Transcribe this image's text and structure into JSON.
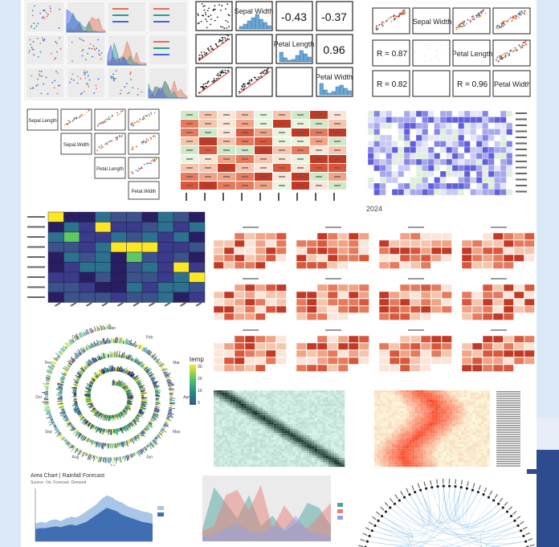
{
  "collage": {
    "colors": {
      "background": "#dbe9f7",
      "accent": "#2d4b8e",
      "red": "#d9583b",
      "blue": "#5a66d6",
      "green": "#3a8a5c"
    }
  },
  "corr_matrix_text": {
    "diag": [
      "Sepal Width",
      "Petal Length",
      "Petal Width"
    ],
    "values": [
      "-0.43",
      "-0.37",
      "0.96"
    ]
  },
  "corr_r_matrix": {
    "diag": [
      "Sepal Width",
      "Petal Length",
      "Petal Width"
    ],
    "r_values": [
      "R = 0.87",
      "R = 0.82",
      "R = 0.96"
    ]
  },
  "scatter_matrix_labels": {
    "diag": [
      "Sepal.Length",
      "Sepal.Width",
      "Petal.Length",
      "Petal.Width"
    ]
  },
  "calendar_year": {
    "label": "2024"
  },
  "polar": {
    "months": [
      "Jan",
      "Feb",
      "Mar",
      "Apr",
      "May",
      "Jun",
      "Jul",
      "Aug",
      "Sep",
      "Oct",
      "Nov",
      "Dec"
    ],
    "legend_title": "temp",
    "legend_ticks": [
      "30",
      "20",
      "10",
      "0"
    ]
  },
  "area_chart": {
    "title": "Area Chart | Rainfall Forecast",
    "subtitle": "Source: Vis. Forecast. Demand"
  },
  "chart_data": [
    {
      "type": "table",
      "title": "",
      "rows": [
        "Sepal Width",
        "Petal Length",
        "Petal Width"
      ],
      "values": [
        [
          "",
          "-0.43",
          "-0.37"
        ],
        [
          "",
          "",
          "0.96"
        ],
        [
          "",
          "",
          ""
        ]
      ]
    },
    {
      "type": "table",
      "title": "",
      "values": [
        "R = 0.87",
        "R = 0.82",
        "R = 0.96"
      ]
    },
    {
      "type": "heatmap",
      "title": "",
      "rows": 9,
      "cols": 9
    },
    {
      "type": "heatmap",
      "title": "",
      "calendar_months": 12
    },
    {
      "type": "area",
      "title": "",
      "series": [
        {
          "values": [
            20,
            22,
            21,
            24,
            25,
            23,
            26,
            28,
            27,
            30,
            34,
            38,
            42,
            48,
            52,
            50,
            46,
            44,
            40,
            38,
            36,
            34,
            33,
            31
          ]
        },
        {
          "values": [
            14,
            15,
            15,
            16,
            17,
            16,
            18,
            19,
            18,
            20,
            22,
            26,
            30,
            34,
            38,
            36,
            34,
            30,
            28,
            26,
            24,
            22,
            21,
            20
          ]
        }
      ]
    },
    {
      "type": "area",
      "title": "",
      "series": [
        {
          "values": [
            10,
            42,
            30,
            18,
            36,
            12,
            20,
            8,
            14,
            30,
            26,
            12
          ]
        },
        {
          "values": [
            8,
            12,
            36,
            40,
            24,
            44,
            10,
            28,
            16,
            10,
            20,
            30
          ]
        },
        {
          "values": [
            4,
            6,
            10,
            14,
            8,
            6,
            12,
            10,
            20,
            8,
            6,
            4
          ]
        }
      ]
    }
  ]
}
